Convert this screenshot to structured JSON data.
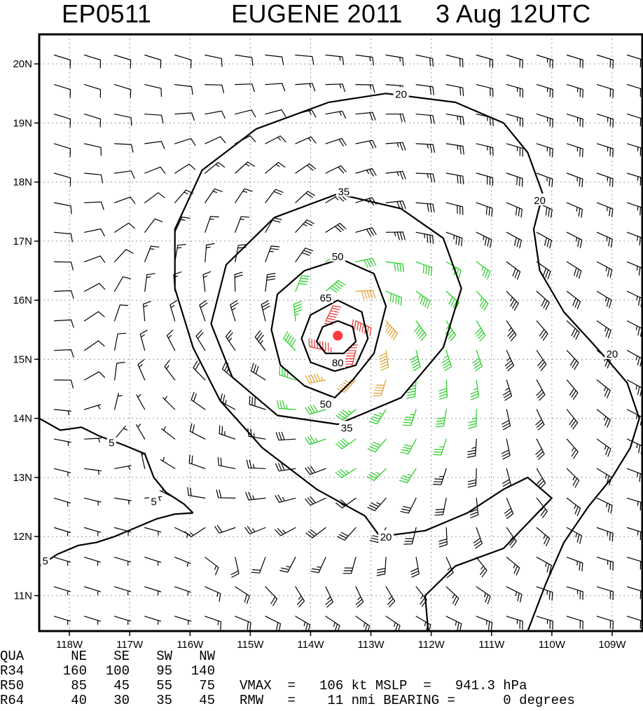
{
  "title": {
    "storm_id": "EP0511",
    "storm_name_year": "EUGENE 2011",
    "datetime": "3 Aug 12UTC"
  },
  "chart_data": {
    "type": "contour",
    "xlabel": "",
    "ylabel": "",
    "xlim": [
      -118.5,
      -108.5
    ],
    "ylim": [
      10.4,
      20.5
    ],
    "x_ticks": [
      {
        "value": -118,
        "label": "118W"
      },
      {
        "value": -117,
        "label": "117W"
      },
      {
        "value": -116,
        "label": "116W"
      },
      {
        "value": -115,
        "label": "115W"
      },
      {
        "value": -114,
        "label": "114W"
      },
      {
        "value": -113,
        "label": "113W"
      },
      {
        "value": -112,
        "label": "112W"
      },
      {
        "value": -111,
        "label": "111W"
      },
      {
        "value": -110,
        "label": "110W"
      },
      {
        "value": -109,
        "label": "109W"
      }
    ],
    "y_ticks": [
      {
        "value": 11,
        "label": "11N"
      },
      {
        "value": 12,
        "label": "12N"
      },
      {
        "value": 13,
        "label": "13N"
      },
      {
        "value": 14,
        "label": "14N"
      },
      {
        "value": 15,
        "label": "15N"
      },
      {
        "value": 16,
        "label": "16N"
      },
      {
        "value": 17,
        "label": "17N"
      },
      {
        "value": 18,
        "label": "18N"
      },
      {
        "value": 19,
        "label": "19N"
      },
      {
        "value": 20,
        "label": "20N"
      }
    ],
    "grid": true,
    "center": {
      "lon": -113.55,
      "lat": 15.4
    },
    "wind_colors": {
      "lt34": "#000000",
      "34to50": "#22cc22",
      "50to64": "#e0a030",
      "64to80": "#e87020",
      "ge80": "#e83030"
    },
    "contours": [
      {
        "label": "5",
        "color": "#000000",
        "points": [
          [
            -118.5,
            14.0
          ],
          [
            -118.15,
            13.8
          ],
          [
            -117.8,
            13.85
          ],
          [
            -117.5,
            13.7
          ],
          [
            -117.1,
            13.55
          ],
          [
            -116.75,
            13.4
          ],
          [
            -116.6,
            13.0
          ],
          [
            -116.4,
            12.75
          ],
          [
            -116.1,
            12.55
          ],
          [
            -115.95,
            12.4
          ]
        ]
      },
      {
        "label": "5",
        "color": "#000000",
        "points": [
          [
            -118.5,
            11.5
          ],
          [
            -118.2,
            11.7
          ],
          [
            -117.85,
            11.85
          ],
          [
            -117.55,
            11.9
          ],
          [
            -117.25,
            12.0
          ],
          [
            -116.9,
            12.15
          ],
          [
            -116.55,
            12.3
          ],
          [
            -116.25,
            12.38
          ],
          [
            -115.95,
            12.4
          ]
        ]
      },
      {
        "label": "20",
        "color": "#000000",
        "points": [
          [
            -112.75,
            19.5
          ],
          [
            -111.6,
            19.35
          ],
          [
            -110.8,
            19.0
          ],
          [
            -110.4,
            18.5
          ],
          [
            -110.15,
            17.8
          ],
          [
            -110.3,
            17.2
          ],
          [
            -110.2,
            16.5
          ],
          [
            -109.8,
            15.8
          ],
          [
            -109.35,
            15.3
          ],
          [
            -109.0,
            14.9
          ],
          [
            -108.75,
            14.6
          ],
          [
            -108.55,
            14.0
          ],
          [
            -108.7,
            13.5
          ],
          [
            -109.0,
            13.0
          ],
          [
            -109.4,
            12.5
          ],
          [
            -109.8,
            11.9
          ],
          [
            -110.1,
            11.2
          ],
          [
            -110.4,
            10.4
          ]
        ]
      },
      {
        "label": "20",
        "color": "#000000",
        "points": [
          [
            -112.75,
            19.5
          ],
          [
            -113.7,
            19.35
          ],
          [
            -114.9,
            18.9
          ],
          [
            -115.8,
            18.2
          ],
          [
            -116.25,
            17.2
          ],
          [
            -116.25,
            16.2
          ],
          [
            -115.95,
            15.2
          ],
          [
            -115.5,
            14.3
          ],
          [
            -114.8,
            13.5
          ],
          [
            -113.9,
            12.8
          ],
          [
            -113.1,
            12.35
          ],
          [
            -112.85,
            12.0
          ],
          [
            -112.1,
            12.1
          ],
          [
            -111.4,
            12.4
          ],
          [
            -110.8,
            12.8
          ],
          [
            -110.4,
            13.0
          ],
          [
            -110.0,
            12.65
          ],
          [
            -110.8,
            11.8
          ],
          [
            -111.6,
            11.5
          ],
          [
            -112.1,
            11.0
          ],
          [
            -112.05,
            10.4
          ]
        ]
      },
      {
        "label": "35",
        "color": "#000000",
        "points": [
          [
            -113.55,
            17.8
          ],
          [
            -112.5,
            17.55
          ],
          [
            -111.8,
            17.05
          ],
          [
            -111.5,
            16.2
          ],
          [
            -111.8,
            15.2
          ],
          [
            -112.5,
            14.35
          ],
          [
            -113.55,
            13.9
          ],
          [
            -114.55,
            14.05
          ],
          [
            -115.3,
            14.7
          ],
          [
            -115.65,
            15.6
          ],
          [
            -115.4,
            16.6
          ],
          [
            -114.6,
            17.4
          ],
          [
            -113.55,
            17.8
          ]
        ]
      },
      {
        "label": "50",
        "color": "#000000",
        "points": [
          [
            -113.5,
            16.7
          ],
          [
            -112.95,
            16.45
          ],
          [
            -112.75,
            15.9
          ],
          [
            -112.95,
            15.1
          ],
          [
            -113.3,
            14.65
          ],
          [
            -113.6,
            14.35
          ],
          [
            -114.1,
            14.55
          ],
          [
            -114.5,
            14.9
          ],
          [
            -114.65,
            15.5
          ],
          [
            -114.55,
            16.1
          ],
          [
            -114.1,
            16.5
          ],
          [
            -113.5,
            16.7
          ]
        ]
      },
      {
        "label": "65",
        "color": "#000000",
        "points": [
          [
            -113.55,
            16.0
          ],
          [
            -113.15,
            15.8
          ],
          [
            -113.05,
            15.35
          ],
          [
            -113.25,
            14.9
          ],
          [
            -113.6,
            14.8
          ],
          [
            -114.0,
            14.95
          ],
          [
            -114.15,
            15.35
          ],
          [
            -114.0,
            15.75
          ],
          [
            -113.55,
            16.0
          ]
        ]
      },
      {
        "label": "80",
        "color": "#000000",
        "points": [
          [
            -113.55,
            15.65
          ],
          [
            -113.3,
            15.55
          ],
          [
            -113.25,
            15.3
          ],
          [
            -113.45,
            15.1
          ],
          [
            -113.75,
            15.1
          ],
          [
            -113.9,
            15.3
          ],
          [
            -113.8,
            15.55
          ],
          [
            -113.55,
            15.65
          ]
        ]
      }
    ],
    "contour_labels": [
      {
        "text": "20",
        "lon": -112.5,
        "lat": 19.5
      },
      {
        "text": "20",
        "lon": -110.2,
        "lat": 17.7
      },
      {
        "text": "20",
        "lon": -109.0,
        "lat": 15.1
      },
      {
        "text": "20",
        "lon": -112.75,
        "lat": 12.0
      },
      {
        "text": "35",
        "lon": -113.45,
        "lat": 17.85
      },
      {
        "text": "35",
        "lon": -113.4,
        "lat": 13.85
      },
      {
        "text": "50",
        "lon": -113.55,
        "lat": 16.75
      },
      {
        "text": "50",
        "lon": -113.75,
        "lat": 14.25
      },
      {
        "text": "65",
        "lon": -113.75,
        "lat": 16.05
      },
      {
        "text": "80",
        "lon": -113.55,
        "lat": 14.95
      },
      {
        "text": "5",
        "lon": -117.3,
        "lat": 13.6
      },
      {
        "text": "5",
        "lon": -116.6,
        "lat": 12.6
      },
      {
        "text": "5",
        "lon": -118.4,
        "lat": 11.6
      }
    ]
  },
  "footer": {
    "headers": [
      "QUA",
      "NE",
      "SE",
      "SW",
      "NW"
    ],
    "rows": [
      {
        "label": "R34",
        "values": [
          "160",
          "100",
          "95",
          "140"
        ]
      },
      {
        "label": "R50",
        "values": [
          "85",
          "45",
          "55",
          "75"
        ]
      },
      {
        "label": "R64",
        "values": [
          "40",
          "30",
          "35",
          "45"
        ]
      }
    ],
    "vmax_text": "VMAX  =   106 kt MSLP  =   941.3 hPa",
    "rmw_text": "RMW   =    11 nmi BEARING =      0 degrees"
  }
}
